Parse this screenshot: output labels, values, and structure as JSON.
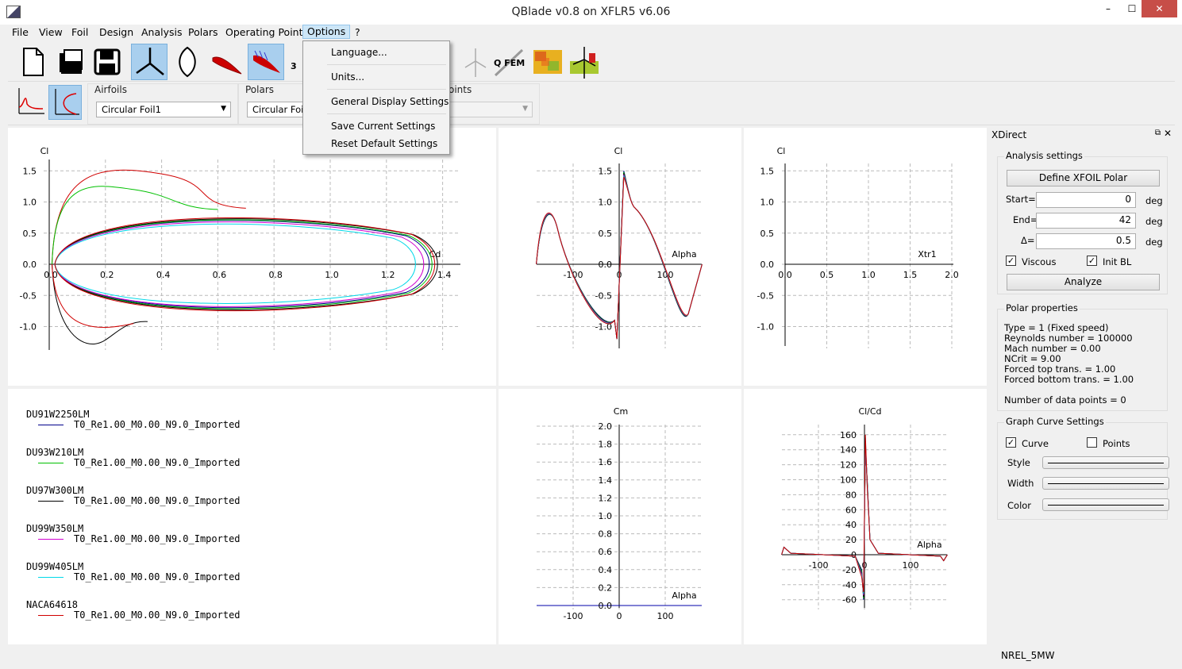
{
  "window": {
    "title": "QBlade v0.8 on XFLR5 v6.06",
    "min": "–",
    "max": "☐",
    "close": "✕"
  },
  "menu": [
    "File",
    "View",
    "Foil",
    "Design",
    "Analysis",
    "Polars",
    "Operating Points",
    "Options",
    "?"
  ],
  "options_menu": {
    "items": [
      "Language...",
      "Units...",
      "General Display Settings",
      "Save Current Settings",
      "Reset Default Settings"
    ]
  },
  "toolbar": {
    "icons": [
      "new-file-icon",
      "open-folder-icon",
      "save-icon",
      "hawt-icon",
      "vawt-icon",
      "airfoil-icon",
      "xfoil-direct-icon",
      "3d-view-icon",
      "turbine-icon",
      "qfem-icon",
      "field-icon",
      "multi-turbine-icon"
    ],
    "qfem_label": "Q FEM",
    "partial_label": "3"
  },
  "selectors": {
    "airfoils": {
      "label": "Airfoils",
      "value": "Circular Foil1"
    },
    "polars": {
      "label": "Polars",
      "value": "Circular Foil1 R"
    },
    "oppoints": {
      "label": "oints",
      "value": ""
    }
  },
  "plots": {
    "polar_main": {
      "ylabel": "Cl",
      "xlabel": "Cd",
      "yticks": [
        "1.5",
        "1.0",
        "0.5",
        "0.0",
        "-0.5",
        "-1.0"
      ],
      "xticks": [
        "0.0",
        "0.2",
        "0.4",
        "0.6",
        "0.8",
        "1.0",
        "1.2",
        "1.4"
      ]
    },
    "cl_alpha": {
      "ylabel": "Cl",
      "xlabel": "Alpha",
      "yticks": [
        "1.5",
        "1.0",
        "0.5",
        "0.0",
        "-0.5",
        "-1.0"
      ],
      "xticks": [
        "-100",
        "0",
        "100"
      ]
    },
    "cl_xtr": {
      "ylabel": "Cl",
      "xlabel": "Xtr1",
      "yticks": [
        "1.5",
        "1.0",
        "0.5",
        "0.0",
        "-0.5",
        "-1.0"
      ],
      "xticks": [
        "0.0",
        "0.5",
        "1.0",
        "1.5",
        "2.0"
      ]
    },
    "cm_alpha": {
      "ylabel": "Cm",
      "xlabel": "Alpha",
      "yticks": [
        "2.0",
        "1.8",
        "1.6",
        "1.4",
        "1.2",
        "1.0",
        "0.8",
        "0.6",
        "0.4",
        "0.2",
        "0.0"
      ],
      "xticks": [
        "-100",
        "0",
        "100"
      ]
    },
    "clcd_alpha": {
      "ylabel": "Cl/Cd",
      "xlabel": "Alpha",
      "yticks": [
        "160",
        "140",
        "120",
        "100",
        "80",
        "60",
        "40",
        "20",
        "0",
        "-20",
        "-40",
        "-60"
      ],
      "xticks": [
        "-100",
        "0",
        "100"
      ]
    }
  },
  "legend": [
    {
      "name": "DU91W2250LM",
      "curve": "T0_Re1.00_M0.00_N9.0_Imported",
      "color": "#00008b"
    },
    {
      "name": "DU93W210LM",
      "curve": "T0_Re1.00_M0.00_N9.0_Imported",
      "color": "#00c000"
    },
    {
      "name": "DU97W300LM",
      "curve": "T0_Re1.00_M0.00_N9.0_Imported",
      "color": "#000000"
    },
    {
      "name": "DU99W350LM",
      "curve": "T0_Re1.00_M0.00_N9.0_Imported",
      "color": "#d000d0"
    },
    {
      "name": "DU99W405LM",
      "curve": "T0_Re1.00_M0.00_N9.0_Imported",
      "color": "#00d8e8"
    },
    {
      "name": "NACA64618",
      "curve": "T0_Re1.00_M0.00_N9.0_Imported",
      "color": "#d00000"
    }
  ],
  "panel": {
    "title": "XDirect",
    "analysis": {
      "title": "Analysis settings",
      "define_button": "Define XFOIL Polar",
      "start_label": "Start=",
      "start_value": "0",
      "end_label": "End=",
      "end_value": "42",
      "delta_label": "Δ=",
      "delta_value": "0.5",
      "unit": "deg",
      "viscous_label": "Viscous",
      "viscous_checked": true,
      "initbl_label": "Init BL",
      "initbl_checked": true,
      "analyze_button": "Analyze"
    },
    "polar_props": {
      "title": "Polar properties",
      "lines": [
        "Type = 1 (Fixed speed)",
        "Reynolds number = 100000",
        "Mach number =  0.00",
        "NCrit =   9.00",
        "Forced top trans. =   1.00",
        "Forced bottom trans. =   1.00",
        "",
        "Number of data points = 0"
      ]
    },
    "curve_settings": {
      "title": "Graph Curve Settings",
      "curve_label": "Curve",
      "curve_checked": true,
      "points_label": "Points",
      "points_checked": false,
      "style_label": "Style",
      "width_label": "Width",
      "color_label": "Color"
    }
  },
  "status": {
    "right_text": "NREL_5MW"
  }
}
